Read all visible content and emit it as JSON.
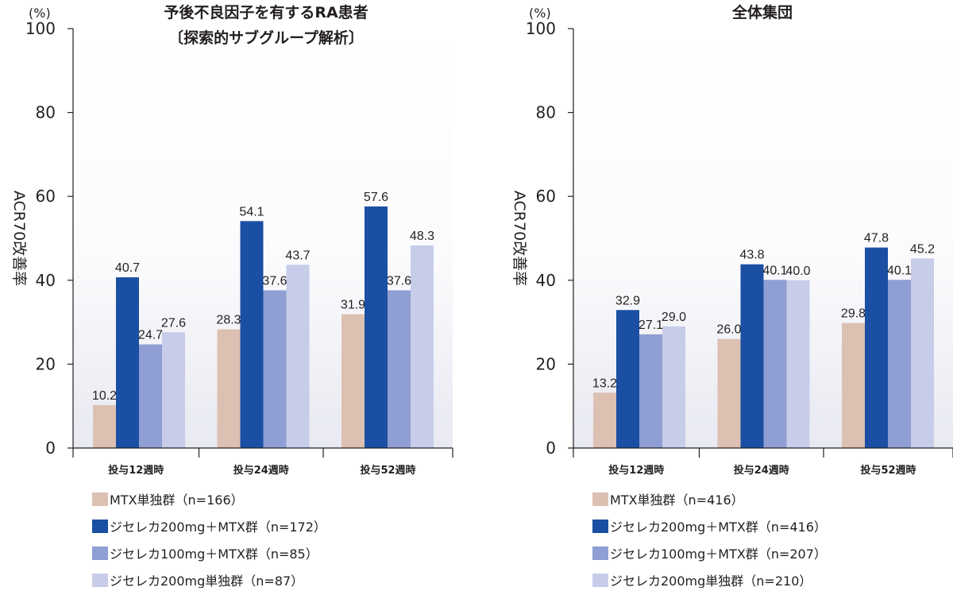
{
  "chart_data": [
    {
      "type": "bar",
      "title": "予後不良因子を有するRA患者",
      "subtitle": "〔探索的サブグループ解析〕",
      "unit": "(%)",
      "ylabel": "ACR70改善率",
      "xlabel": "",
      "ylim": [
        0,
        100
      ],
      "yticks": [
        0,
        20,
        40,
        60,
        80,
        100
      ],
      "grid": false,
      "categories": [
        "投与12週時",
        "投与24週時",
        "投与52週時"
      ],
      "series": [
        {
          "name": "MTX単独群（n=166）",
          "color": "#dcc0b2",
          "values": [
            10.2,
            28.3,
            31.9
          ]
        },
        {
          "name": "ジセレカ200mg＋MTX群（n=172）",
          "color": "#1a4fa3",
          "values": [
            40.7,
            54.1,
            57.6
          ]
        },
        {
          "name": "ジセレカ100mg＋MTX群（n=85）",
          "color": "#8f9ed3",
          "values": [
            24.7,
            37.6,
            37.6
          ]
        },
        {
          "name": "ジセレカ200mg単独群（n=87）",
          "color": "#c7cde9",
          "values": [
            27.6,
            43.7,
            48.3
          ]
        }
      ],
      "legend_position": "bottom"
    },
    {
      "type": "bar",
      "title": "全体集団",
      "subtitle": "",
      "unit": "(%)",
      "ylabel": "ACR70改善率",
      "xlabel": "",
      "ylim": [
        0,
        100
      ],
      "yticks": [
        0,
        20,
        40,
        60,
        80,
        100
      ],
      "grid": false,
      "categories": [
        "投与12週時",
        "投与24週時",
        "投与52週時"
      ],
      "series": [
        {
          "name": "MTX単独群（n=416）",
          "color": "#dcc0b2",
          "values": [
            13.2,
            26.0,
            29.8
          ]
        },
        {
          "name": "ジセレカ200mg＋MTX群（n=416）",
          "color": "#1a4fa3",
          "values": [
            32.9,
            43.8,
            47.8
          ]
        },
        {
          "name": "ジセレカ100mg＋MTX群（n=207）",
          "color": "#8f9ed3",
          "values": [
            27.1,
            40.1,
            40.1
          ]
        },
        {
          "name": "ジセレカ200mg単独群（n=210）",
          "color": "#c7cde9",
          "values": [
            29.0,
            40.0,
            45.2
          ]
        }
      ],
      "legend_position": "bottom"
    }
  ]
}
